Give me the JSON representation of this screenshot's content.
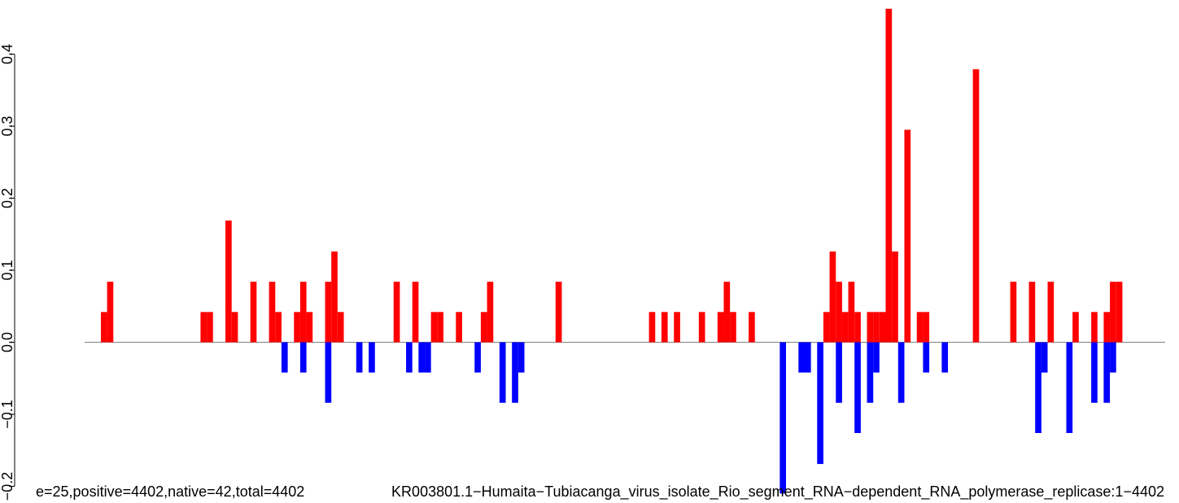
{
  "chart_data": {
    "type": "bar",
    "title": "",
    "xlabel": "",
    "ylabel": "",
    "ylim": [
      -0.2,
      0.46
    ],
    "yticks": [
      "-0.2",
      "-0.1",
      "0.0",
      "0.1",
      "0.2",
      "0.3",
      "0.4"
    ],
    "positive_color": "#ff0000",
    "negative_color": "#0000ff",
    "baseline_color": "#808080",
    "caption_left": "e=25,positive=4402,native=42,total=4402",
    "caption_right": "KR003801.1−Humaita−Tubiacanga_virus_isolate_Rio_segment_RNA−dependent_RNA_polymerase_replicase:1−4402",
    "series": [
      {
        "name": "positive",
        "values": [
          [
            3,
            0.042
          ],
          [
            4,
            0.084
          ],
          [
            19,
            0.042
          ],
          [
            20,
            0.042
          ],
          [
            23,
            0.169
          ],
          [
            24,
            0.042
          ],
          [
            27,
            0.084
          ],
          [
            30,
            0.084
          ],
          [
            31,
            0.042
          ],
          [
            34,
            0.042
          ],
          [
            35,
            0.084
          ],
          [
            36,
            0.042
          ],
          [
            39,
            0.084
          ],
          [
            40,
            0.126
          ],
          [
            41,
            0.042
          ],
          [
            50,
            0.084
          ],
          [
            53,
            0.084
          ],
          [
            56,
            0.042
          ],
          [
            57,
            0.042
          ],
          [
            60,
            0.042
          ],
          [
            64,
            0.042
          ],
          [
            65,
            0.084
          ],
          [
            76,
            0.084
          ],
          [
            91,
            0.042
          ],
          [
            93,
            0.042
          ],
          [
            95,
            0.042
          ],
          [
            99,
            0.042
          ],
          [
            102,
            0.042
          ],
          [
            103,
            0.084
          ],
          [
            104,
            0.042
          ],
          [
            107,
            0.042
          ],
          [
            119,
            0.042
          ],
          [
            120,
            0.126
          ],
          [
            121,
            0.084
          ],
          [
            122,
            0.042
          ],
          [
            123,
            0.084
          ],
          [
            124,
            0.042
          ],
          [
            126,
            0.042
          ],
          [
            127,
            0.042
          ],
          [
            128,
            0.042
          ],
          [
            129,
            0.463
          ],
          [
            130,
            0.126
          ],
          [
            132,
            0.295
          ],
          [
            134,
            0.042
          ],
          [
            135,
            0.042
          ],
          [
            143,
            0.379
          ],
          [
            149,
            0.084
          ],
          [
            152,
            0.084
          ],
          [
            155,
            0.084
          ],
          [
            159,
            0.042
          ],
          [
            162,
            0.042
          ],
          [
            164,
            0.042
          ],
          [
            165,
            0.084
          ],
          [
            166,
            0.084
          ]
        ]
      },
      {
        "name": "negative",
        "values": [
          [
            32,
            -0.042
          ],
          [
            35,
            -0.042
          ],
          [
            39,
            -0.084
          ],
          [
            44,
            -0.042
          ],
          [
            46,
            -0.042
          ],
          [
            52,
            -0.042
          ],
          [
            54,
            -0.042
          ],
          [
            55,
            -0.042
          ],
          [
            63,
            -0.042
          ],
          [
            67,
            -0.084
          ],
          [
            69,
            -0.084
          ],
          [
            70,
            -0.042
          ],
          [
            112,
            -0.21
          ],
          [
            115,
            -0.042
          ],
          [
            116,
            -0.042
          ],
          [
            118,
            -0.169
          ],
          [
            121,
            -0.084
          ],
          [
            124,
            -0.126
          ],
          [
            126,
            -0.084
          ],
          [
            127,
            -0.042
          ],
          [
            131,
            -0.084
          ],
          [
            135,
            -0.042
          ],
          [
            138,
            -0.042
          ],
          [
            153,
            -0.126
          ],
          [
            154,
            -0.042
          ],
          [
            158,
            -0.126
          ],
          [
            162,
            -0.084
          ],
          [
            164,
            -0.084
          ],
          [
            165,
            -0.042
          ]
        ]
      }
    ]
  }
}
